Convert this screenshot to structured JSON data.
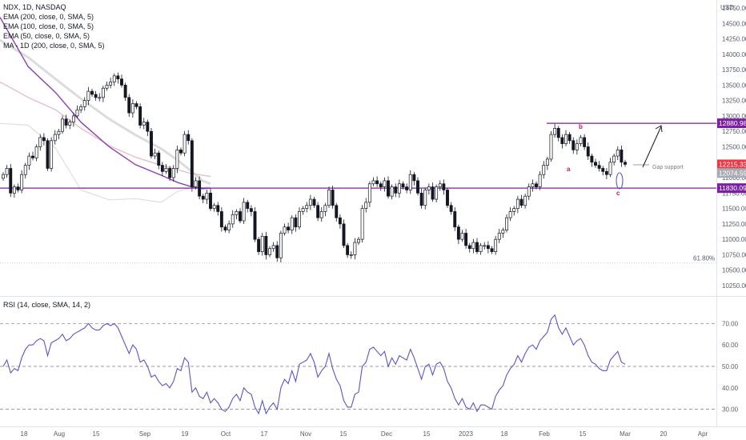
{
  "chart_data": [
    {
      "type": "candlestick",
      "title": "NDX, 1D, NASDAQ",
      "indicators": [
        "EMA (200, close, 0, SMA, 5)",
        "EMA (100, close, 0, SMA, 5)",
        "EMA (50, close, 0, SMA, 5)",
        "MA - 1D (200, close, 0, SMA, 5)"
      ],
      "currency": "USD",
      "ylim": [
        10250,
        14750
      ],
      "y_ticks": [
        "14750.00",
        "14500.00",
        "14250.00",
        "14000.00",
        "13750.00",
        "13500.00",
        "13250.00",
        "13000.00",
        "12750.00",
        "12500.00",
        "12250.00",
        "12000.00",
        "11750.00",
        "11500.00",
        "11250.00",
        "11000.00",
        "10750.00",
        "10500.00",
        "10250.00"
      ],
      "price_tags": [
        {
          "label": "12880.98",
          "value": 12880.98,
          "color": "#7b1fa2"
        },
        {
          "label": "12215.33",
          "value": 12215.33,
          "color": "#f23645"
        },
        {
          "label": "12074.59",
          "value": 12074.59,
          "color": "#a9acb4"
        },
        {
          "label": "11830.09",
          "value": 11830.09,
          "color": "#7b1fa2"
        }
      ],
      "horizontal_lines": [
        12880.98,
        11830.09
      ],
      "fib_label": "61.80%",
      "fib_level": 10620,
      "annotations": [
        {
          "text": "a",
          "x": "2023-02-06",
          "y": 12020
        },
        {
          "text": "b",
          "x": "2023-02-10",
          "y": 12840
        },
        {
          "text": "c",
          "x": "2023-03-01",
          "y": 11680
        },
        {
          "text": "Gap support",
          "x": "2023-03-13",
          "y": 12080
        }
      ],
      "ema200": [
        {
          "x": "2022-07-14",
          "y": 14230
        },
        {
          "x": "2022-08-15",
          "y": 13950
        },
        {
          "x": "2022-09-15",
          "y": 13600
        },
        {
          "x": "2022-10-14",
          "y": 13280
        },
        {
          "x": "2022-11-15",
          "y": 12950
        },
        {
          "x": "2022-12-15",
          "y": 12690
        },
        {
          "x": "2023-01-13",
          "y": 12470
        },
        {
          "x": "2023-02-01",
          "y": 12280
        },
        {
          "x": "2023-02-15",
          "y": 12120
        },
        {
          "x": "2023-03-01",
          "y": 11950
        },
        {
          "x": "2023-03-10",
          "y": 11900
        }
      ],
      "ema100": [
        {
          "x": "2022-07-14",
          "y": 13550
        },
        {
          "x": "2022-08-15",
          "y": 13300
        },
        {
          "x": "2022-09-15",
          "y": 13100
        },
        {
          "x": "2022-10-14",
          "y": 12800
        },
        {
          "x": "2022-11-15",
          "y": 12520
        },
        {
          "x": "2022-12-15",
          "y": 12330
        },
        {
          "x": "2023-01-13",
          "y": 12200
        },
        {
          "x": "2023-02-01",
          "y": 12130
        },
        {
          "x": "2023-02-15",
          "y": 12070
        },
        {
          "x": "2023-03-10",
          "y": 12020
        }
      ],
      "ema50": [
        {
          "x": "2022-07-14",
          "y": 12880
        },
        {
          "x": "2022-08-15",
          "y": 12850
        },
        {
          "x": "2022-09-15",
          "y": 12480
        },
        {
          "x": "2022-10-14",
          "y": 11800
        },
        {
          "x": "2022-11-15",
          "y": 11640
        },
        {
          "x": "2022-12-15",
          "y": 11660
        },
        {
          "x": "2023-01-13",
          "y": 11600
        },
        {
          "x": "2023-02-01",
          "y": 11780
        },
        {
          "x": "2023-02-15",
          "y": 11830
        },
        {
          "x": "2023-03-10",
          "y": 11850
        }
      ],
      "ma200_1d": [
        {
          "x": "2022-07-14",
          "y": 14600
        },
        {
          "x": "2022-08-15",
          "y": 13800
        },
        {
          "x": "2022-09-15",
          "y": 13380
        },
        {
          "x": "2022-10-14",
          "y": 12900
        },
        {
          "x": "2022-11-15",
          "y": 12500
        },
        {
          "x": "2022-12-15",
          "y": 12210
        },
        {
          "x": "2023-01-13",
          "y": 12040
        },
        {
          "x": "2023-02-01",
          "y": 11920
        },
        {
          "x": "2023-02-15",
          "y": 11860
        },
        {
          "x": "2023-03-01",
          "y": 11820
        },
        {
          "x": "2023-03-10",
          "y": 11830
        }
      ],
      "closes": [
        12050,
        12150,
        11750,
        11850,
        11800,
        12050,
        12200,
        12350,
        12320,
        12500,
        12650,
        12600,
        12150,
        12600,
        12700,
        12750,
        12950,
        12850,
        12900,
        13000,
        13100,
        13150,
        13250,
        13400,
        13350,
        13300,
        13300,
        13450,
        13500,
        13550,
        13650,
        13600,
        13500,
        13300,
        13050,
        13200,
        13150,
        12850,
        12900,
        12750,
        12350,
        12400,
        12200,
        12100,
        12150,
        12000,
        12150,
        12450,
        12400,
        12700,
        12600,
        11850,
        11950,
        11700,
        11650,
        11750,
        11500,
        11550,
        11450,
        11200,
        11150,
        11250,
        11400,
        11450,
        11300,
        11600,
        11500,
        11450,
        11000,
        10800,
        11050,
        10750,
        10850,
        10900,
        10700,
        11100,
        11200,
        11150,
        11350,
        11200,
        11450,
        11500,
        11550,
        11650,
        11550,
        11350,
        11450,
        11550,
        11800,
        11550,
        11350,
        11250,
        10900,
        10750,
        10750,
        10950,
        11000,
        11500,
        11600,
        11900,
        11950,
        11900,
        11850,
        11950,
        11700,
        11850,
        11750,
        11900,
        11850,
        11800,
        12050,
        11950,
        11750,
        11550,
        11800,
        11850,
        11650,
        11850,
        11900,
        11800,
        11550,
        11450,
        11200,
        11000,
        11100,
        10900,
        10850,
        10950,
        10800,
        10900,
        10900,
        10850,
        10800,
        11000,
        11100,
        11150,
        11350,
        11450,
        11500,
        11650,
        11550,
        11700,
        11850,
        11900,
        11850,
        12050,
        12200,
        12300,
        12700,
        12800,
        12650,
        12550,
        12700,
        12600,
        12450,
        12550,
        12650,
        12500,
        12350,
        12250,
        12200,
        12150,
        12100,
        12050,
        12250,
        12350,
        12450,
        12250,
        12215
      ],
      "x_ticks": [
        "18",
        "Aug",
        "15",
        "Sep",
        "19",
        "Oct",
        "17",
        "Nov",
        "15",
        "Dec",
        "15",
        "2023",
        "18",
        "Feb",
        "15",
        "Mar",
        "20",
        "Apr"
      ]
    },
    {
      "type": "line",
      "title": "RSI (14, close, SMA, 14, 2)",
      "ylim": [
        25,
        78
      ],
      "y_ticks": [
        "70.00",
        "60.00",
        "50.00",
        "40.00",
        "30.00"
      ],
      "reference_levels": [
        70,
        50,
        30
      ],
      "values": [
        50,
        53,
        47,
        49,
        48,
        54,
        58,
        60,
        60,
        62,
        63,
        62,
        55,
        61,
        62,
        63,
        65,
        62,
        63,
        65,
        66,
        67,
        68,
        70,
        68,
        67,
        67,
        69,
        70,
        69,
        70,
        68,
        64,
        60,
        56,
        60,
        58,
        52,
        53,
        50,
        45,
        46,
        43,
        41,
        42,
        40,
        43,
        49,
        48,
        54,
        52,
        38,
        40,
        36,
        35,
        38,
        33,
        35,
        33,
        30,
        29,
        31,
        35,
        37,
        34,
        40,
        38,
        37,
        31,
        28,
        34,
        28,
        31,
        33,
        30,
        40,
        44,
        42,
        48,
        43,
        51,
        52,
        53,
        56,
        52,
        45,
        48,
        50,
        56,
        49,
        44,
        41,
        34,
        31,
        31,
        37,
        38,
        50,
        52,
        58,
        59,
        57,
        55,
        57,
        50,
        54,
        51,
        55,
        54,
        53,
        58,
        54,
        49,
        44,
        50,
        51,
        46,
        51,
        52,
        49,
        43,
        40,
        35,
        32,
        35,
        31,
        30,
        33,
        29,
        32,
        32,
        31,
        30,
        36,
        39,
        41,
        46,
        49,
        51,
        55,
        52,
        56,
        59,
        60,
        58,
        62,
        64,
        66,
        72,
        74,
        68,
        65,
        68,
        64,
        60,
        62,
        63,
        60,
        55,
        52,
        51,
        49,
        48,
        48,
        53,
        55,
        57,
        52,
        51
      ]
    }
  ]
}
